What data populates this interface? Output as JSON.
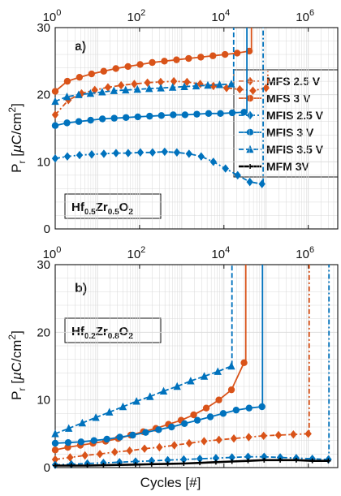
{
  "colors": {
    "orange": "#D95319",
    "blue": "#0072BD",
    "black": "#000000",
    "grid": "#d9d9d9"
  },
  "shared": {
    "y_label": "P_r [µC/cm²]",
    "y_label_parts": {
      "symbol": "P",
      "subscript": "r",
      "unit_open": " [",
      "mu": "µ",
      "unit_rest": "C/cm",
      "unit_sup": "2",
      "unit_close": "]"
    },
    "x_label": "Cycles [#]",
    "x_tick_base": "10",
    "x_tick_exponents": [
      "0",
      "2",
      "4",
      "6"
    ]
  },
  "legend": {
    "placement": "right of panel a",
    "entries": [
      {
        "label": "MFS 2.5 V",
        "color": "#D95319",
        "dash": "dashdot",
        "marker": "diamond"
      },
      {
        "label": "MFS 3 V",
        "color": "#D95319",
        "dash": "solid",
        "marker": "circle"
      },
      {
        "label": "MFIS 2.5 V",
        "color": "#0072BD",
        "dash": "dashdot",
        "marker": "diamond"
      },
      {
        "label": "MFIS 3 V",
        "color": "#0072BD",
        "dash": "solid",
        "marker": "circle"
      },
      {
        "label": "MFIS 3.5 V",
        "color": "#0072BD",
        "dash": "dashed",
        "marker": "triangle"
      },
      {
        "label": "MFM 3V",
        "color": "#000000",
        "dash": "solid",
        "marker": "plus"
      }
    ]
  },
  "chart_data": [
    {
      "type": "line",
      "panel_label": "a)",
      "material": {
        "el1": "Hf",
        "sub1": "0.5",
        "el2": "Zr",
        "sub2": "0.5",
        "el3": "O",
        "sub3": "2"
      },
      "x_scale": "log",
      "xlim": [
        1,
        5000000
      ],
      "ylim": [
        0,
        30
      ],
      "y_ticks": [
        "0",
        "10",
        "20",
        "30"
      ],
      "grid": true,
      "series": [
        {
          "name": "MFS 2.5 V",
          "x_range": [
            1,
            100000
          ],
          "values": [
            17,
            19.2,
            20.2,
            20.7,
            21.1,
            21.4,
            21.6,
            21.8,
            21.9,
            22.0,
            21.9,
            21.6,
            21.3,
            21.0,
            20.8,
            20.6,
            21.0
          ],
          "break_to": 23.5,
          "breakdown_x": 110000
        },
        {
          "name": "MFS 3 V",
          "x_range": [
            1,
            40000
          ],
          "values": [
            20.5,
            22.0,
            22.6,
            23.1,
            23.5,
            23.9,
            24.2,
            24.5,
            24.8,
            25.0,
            25.2,
            25.4,
            25.6,
            25.8,
            26.0,
            26.2,
            26.5
          ],
          "break_to": 30,
          "breakdown_x": 45000
        },
        {
          "name": "MFIS 2.5 V",
          "x_range": [
            1,
            80000
          ],
          "values": [
            10.5,
            10.8,
            11.0,
            11.1,
            11.2,
            11.3,
            11.3,
            11.4,
            11.4,
            11.5,
            11.4,
            11.2,
            10.8,
            10.0,
            9.0,
            8.0,
            7.0,
            6.7
          ],
          "break_to": 30,
          "breakdown_x": 85000
        },
        {
          "name": "MFIS 3 V",
          "x_range": [
            1,
            30000
          ],
          "values": [
            15.4,
            15.8,
            16.0,
            16.2,
            16.4,
            16.5,
            16.6,
            16.7,
            16.8,
            16.9,
            17.0,
            17.0,
            17.1,
            17.2,
            17.2,
            17.3,
            17.4
          ],
          "break_to": 30,
          "breakdown_x": 35000
        },
        {
          "name": "MFIS 3.5 V",
          "x_range": [
            1,
            15000
          ],
          "values": [
            19.0,
            19.7,
            20.0,
            20.2,
            20.4,
            20.6,
            20.7,
            20.8,
            20.9,
            21.0,
            21.1,
            21.2,
            21.3,
            21.4,
            21.5,
            21.6
          ],
          "break_to": 30,
          "breakdown_x": 17000
        }
      ]
    },
    {
      "type": "line",
      "panel_label": "b)",
      "material": {
        "el1": "Hf",
        "sub1": "0.2",
        "el2": "Zr",
        "sub2": "0.8",
        "el3": "O",
        "sub3": "2"
      },
      "x_scale": "log",
      "xlim": [
        1,
        5000000
      ],
      "ylim": [
        0,
        30
      ],
      "y_ticks": [
        "0",
        "10",
        "20",
        "30"
      ],
      "grid": true,
      "series": [
        {
          "name": "MFS 2.5 V",
          "x_range": [
            1,
            1000000
          ],
          "values": [
            1.2,
            1.5,
            1.8,
            2.0,
            2.3,
            2.5,
            2.8,
            3.0,
            3.3,
            3.6,
            3.9,
            4.1,
            4.3,
            4.5,
            4.7,
            4.8,
            4.9,
            5.0
          ],
          "break_to": 30,
          "breakdown_x": 1050000
        },
        {
          "name": "MFS 3 V",
          "x_range": [
            1,
            30000
          ],
          "values": [
            2.6,
            3.0,
            3.3,
            3.6,
            3.9,
            4.3,
            4.8,
            5.3,
            5.8,
            6.4,
            7.0,
            7.8,
            8.8,
            10.0,
            11.5,
            15.5
          ],
          "break_to": 30,
          "breakdown_x": 33000
        },
        {
          "name": "MFIS 2.5 V",
          "x_range": [
            1,
            3000000
          ],
          "values": [
            0.4,
            0.5,
            0.6,
            0.7,
            0.8,
            0.9,
            1.0,
            1.1,
            1.2,
            1.3,
            1.4,
            1.5,
            1.6,
            1.6,
            1.5,
            1.4,
            1.3,
            1.2
          ],
          "break_to": 30,
          "breakdown_x": 3100000
        },
        {
          "name": "MFIS 3 V",
          "x_range": [
            1,
            80000
          ],
          "values": [
            3.6,
            3.7,
            3.8,
            4.0,
            4.2,
            4.5,
            4.8,
            5.2,
            5.6,
            6.0,
            6.5,
            7.0,
            7.5,
            8.0,
            8.5,
            8.8,
            9.0
          ],
          "break_to": 30,
          "breakdown_x": 82000
        },
        {
          "name": "MFIS 3.5 V",
          "x_range": [
            1,
            15000
          ],
          "values": [
            5.0,
            5.8,
            6.6,
            7.4,
            8.2,
            9.0,
            9.8,
            10.5,
            11.3,
            12.0,
            12.8,
            13.5,
            14.2,
            15.0
          ],
          "break_to": 30,
          "breakdown_x": 15500
        },
        {
          "name": "MFM 3V",
          "x_range": [
            1,
            3000000
          ],
          "values": [
            0.3,
            0.3,
            0.3,
            0.35,
            0.4,
            0.45,
            0.5,
            0.55,
            0.6,
            0.7,
            0.8,
            0.9,
            1.0,
            1.1,
            1.1,
            1.1,
            1.0,
            1.0
          ]
        }
      ]
    }
  ]
}
